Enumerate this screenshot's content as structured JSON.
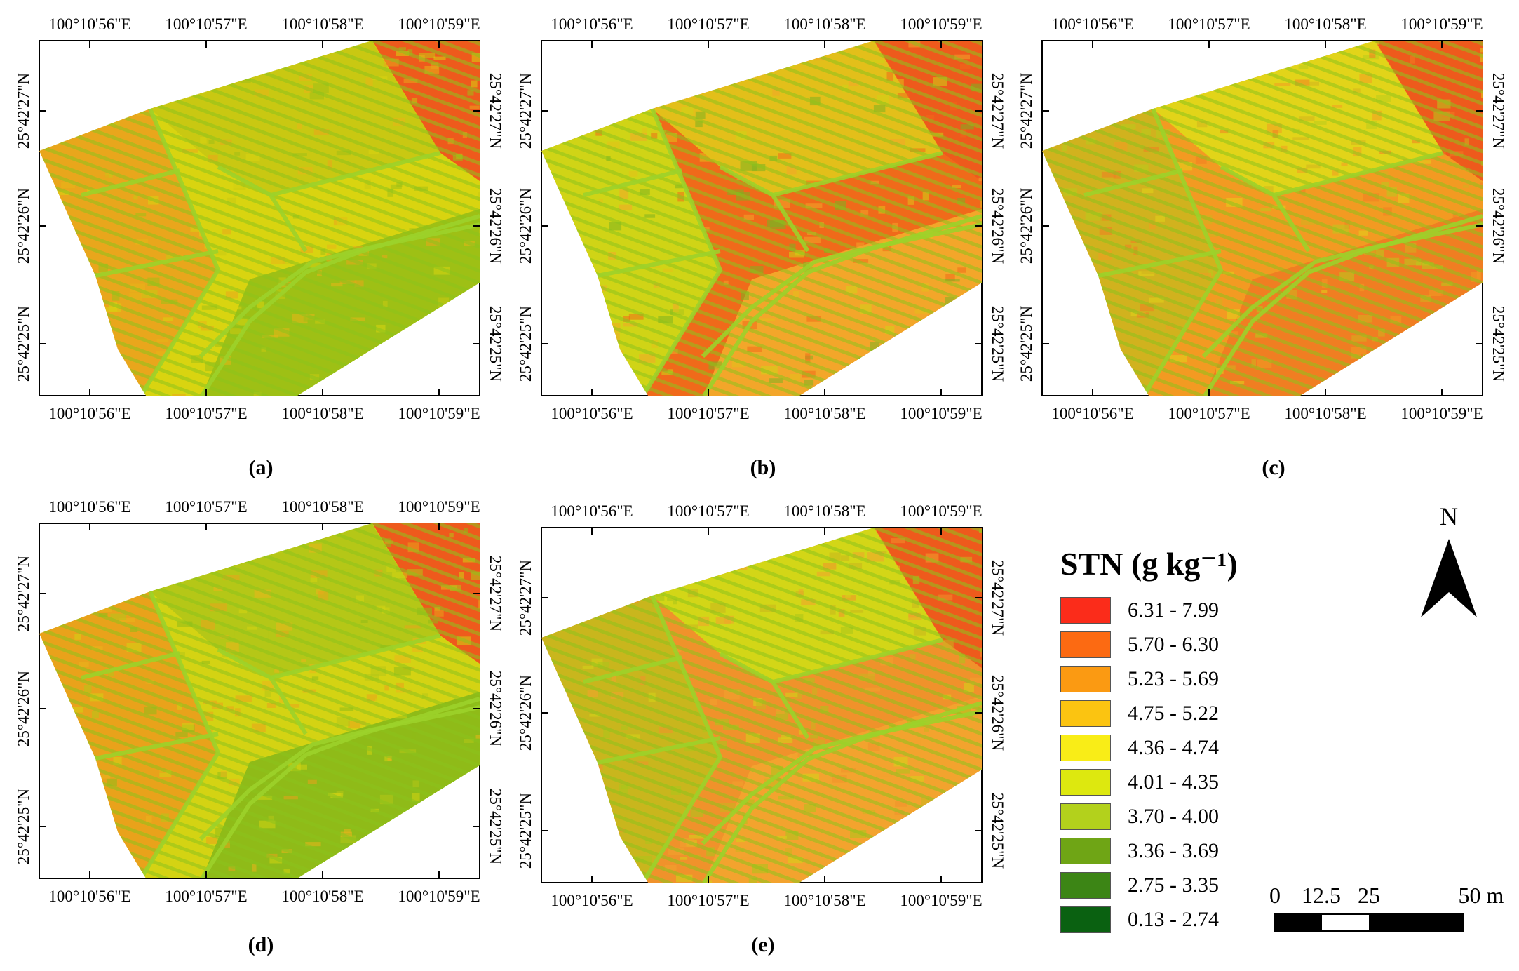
{
  "panels": [
    {
      "id": "a",
      "letter": "(a)",
      "palette": [
        "#d9d410",
        "#c9c812",
        "#e8b418",
        "#9ec015",
        "#e9a61c"
      ]
    },
    {
      "id": "b",
      "letter": "(b)",
      "palette": [
        "#f06a1a",
        "#e3bf1a",
        "#7bb321",
        "#f3a62a",
        "#d0d416"
      ]
    },
    {
      "id": "c",
      "letter": "(c)",
      "palette": [
        "#f39a22",
        "#e2d419",
        "#b8cc1c",
        "#f07e22",
        "#d1b21e"
      ]
    },
    {
      "id": "d",
      "letter": "(d)",
      "palette": [
        "#d4d313",
        "#b5c717",
        "#ebb41b",
        "#8fbb18",
        "#e9a21b"
      ]
    },
    {
      "id": "e",
      "letter": "(e)",
      "palette": [
        "#f0922b",
        "#d3d617",
        "#aac61a",
        "#f3a32e",
        "#c9b61d"
      ]
    }
  ],
  "axes": {
    "lon_labels": [
      "100°10'56\"E",
      "100°10'57\"E",
      "100°10'58\"E",
      "100°10'59\"E"
    ],
    "lat_labels": [
      "25°42'27\"N",
      "25°42'26\"N",
      "25°42'25\"N"
    ]
  },
  "legend": {
    "title": "STN (g kg⁻¹)",
    "classes": [
      {
        "label": "6.31 - 7.99",
        "color": "#fb2c1a"
      },
      {
        "label": "5.70 - 6.30",
        "color": "#fc6a12"
      },
      {
        "label": "5.23 - 5.69",
        "color": "#fb9a12"
      },
      {
        "label": "4.75 - 5.22",
        "color": "#fbc411"
      },
      {
        "label": "4.36 - 4.74",
        "color": "#f9ed17"
      },
      {
        "label": "4.01 - 4.35",
        "color": "#dde80f"
      },
      {
        "label": "3.70 - 4.00",
        "color": "#b3d11c"
      },
      {
        "label": "3.36 - 3.69",
        "color": "#6fa515"
      },
      {
        "label": "2.75 - 3.35",
        "color": "#3c8515"
      },
      {
        "label": "0.13 - 2.74",
        "color": "#0a6111"
      }
    ]
  },
  "north_arrow": {
    "label": "N"
  },
  "scale_bar": {
    "ticks": [
      "0",
      "12.5",
      "25",
      "50 m"
    ]
  }
}
